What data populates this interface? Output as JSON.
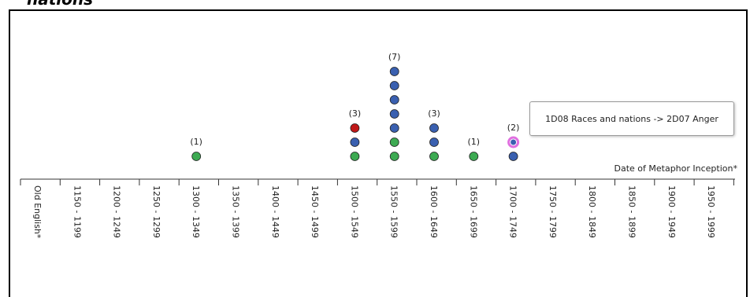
{
  "page": {
    "title": "nations"
  },
  "chart_data": {
    "type": "scatter",
    "xlabel": "Date of Metaphor Inception*",
    "categories": [
      "Old English*",
      "1150 - 1199",
      "1200 - 1249",
      "1250 - 1299",
      "1300 - 1349",
      "1350 - 1399",
      "1400 - 1449",
      "1450 - 1499",
      "1500 - 1549",
      "1550 - 1599",
      "1600 - 1649",
      "1650 - 1699",
      "1700 - 1749",
      "1750 - 1799",
      "1800 - 1849",
      "1850 - 1899",
      "1900 - 1949",
      "1950 - 1999"
    ],
    "counts": [
      0,
      0,
      0,
      0,
      1,
      0,
      0,
      0,
      3,
      7,
      3,
      1,
      2,
      0,
      0,
      0,
      0,
      0
    ],
    "count_labels": [
      "",
      "",
      "",
      "",
      "(1)",
      "",
      "",
      "",
      "(3)",
      "(7)",
      "(3)",
      "(1)",
      "(2)",
      "",
      "",
      "",
      "",
      ""
    ],
    "stacks": [
      [],
      [],
      [],
      [],
      [
        "green"
      ],
      [],
      [],
      [],
      [
        "green",
        "blue",
        "red"
      ],
      [
        "green",
        "green",
        "blue",
        "blue",
        "blue",
        "blue",
        "blue"
      ],
      [
        "green",
        "blue",
        "blue"
      ],
      [
        "green"
      ],
      [
        "blue",
        "blue-highlighted"
      ],
      [],
      [],
      [],
      [],
      []
    ],
    "colors": {
      "green": "#3daa52",
      "blue": "#3a60b0",
      "red": "#c01818",
      "highlight_ring": "#e070e0",
      "axis": "#333333"
    },
    "tooltip": "1D08 Races and nations -> 2D07 Anger",
    "grid": false
  }
}
